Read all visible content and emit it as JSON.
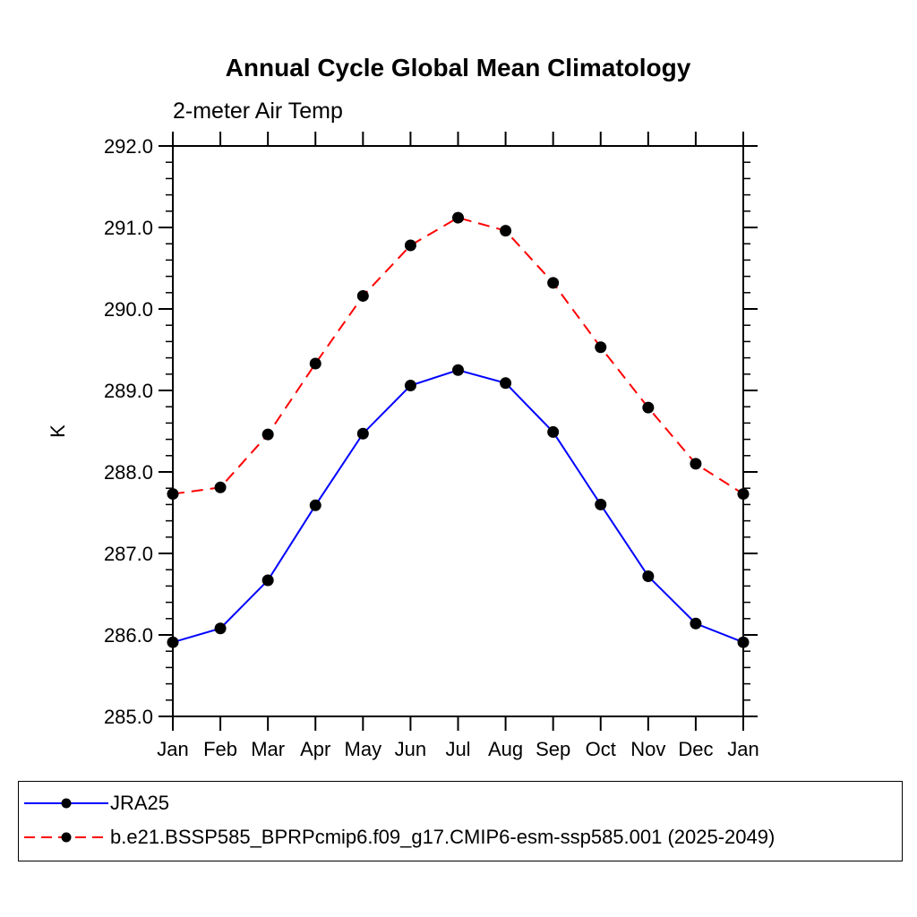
{
  "chart_data": {
    "type": "line",
    "title": "Annual Cycle Global Mean Climatology",
    "subtitle": "2-meter Air Temp",
    "ylabel": "K",
    "xlabel": "",
    "ylim": [
      285.0,
      292.0
    ],
    "ytick_step": 1.0,
    "yminor_step": 0.2,
    "ytick_labels": [
      "292.0",
      "291.0",
      "290.0",
      "289.0",
      "288.0",
      "287.0",
      "286.0",
      "285.0"
    ],
    "categories": [
      "Jan",
      "Feb",
      "Mar",
      "Apr",
      "May",
      "Jun",
      "Jul",
      "Aug",
      "Sep",
      "Oct",
      "Nov",
      "Dec",
      "Jan"
    ],
    "grid": false,
    "legend_position": "bottom",
    "marker": {
      "shape": "filled-circle",
      "color": "#000000",
      "radius": 6.5
    },
    "axis_color": "#000000",
    "series": [
      {
        "name": "JRA25",
        "color": "#0000ff",
        "style": "solid",
        "values": [
          285.91,
          286.08,
          286.67,
          287.59,
          288.47,
          289.06,
          289.25,
          289.09,
          288.49,
          287.6,
          286.72,
          286.14,
          285.91
        ]
      },
      {
        "name": "b.e21.BSSP585_BPRPcmip6.f09_g17.CMIP6-esm-ssp585.001 (2025-2049)",
        "color": "#ff0000",
        "style": "dashed",
        "values": [
          287.73,
          287.81,
          288.46,
          289.33,
          290.16,
          290.78,
          291.12,
          290.96,
          290.32,
          289.53,
          288.79,
          288.1,
          287.73
        ]
      }
    ]
  }
}
